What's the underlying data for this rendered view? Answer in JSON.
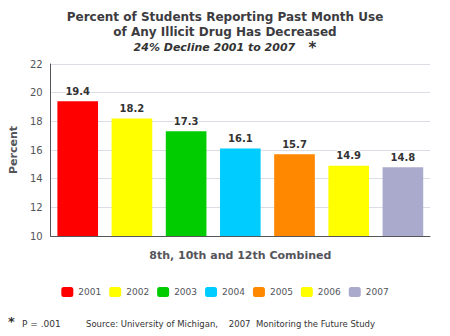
{
  "chart_data": {
    "type": "bar",
    "title": "Percent of Students Reporting Past Month Use\nof Any Illicit Drug Has Decreased",
    "subtitle": "24% Decline 2001 to 2007",
    "categories": [
      "2001",
      "2002",
      "2003",
      "2004",
      "2005",
      "2006",
      "2007"
    ],
    "values": [
      19.4,
      18.2,
      17.3,
      16.1,
      15.7,
      14.9,
      14.8
    ],
    "colors": [
      "#ff0000",
      "#ffff00",
      "#00cc00",
      "#00ccff",
      "#ff8800",
      "#ffff00",
      "#aaaacc"
    ],
    "x_label": "8th, 10th and 12th Combined",
    "y_label": "Percent",
    "ylim": [
      10,
      22
    ],
    "yticks": [
      10,
      12,
      14,
      16,
      18,
      20,
      22
    ],
    "grid": true,
    "legend": "bottom",
    "data_labels": true,
    "tick_labels": "y",
    "annotations": [
      "*",
      "*",
      "P = .001",
      "Source: University of Michigan,    2007  Monitoring the Future Study"
    ]
  }
}
